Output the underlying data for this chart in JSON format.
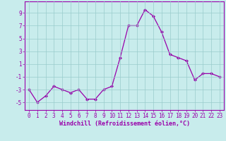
{
  "x": [
    0,
    1,
    2,
    3,
    4,
    5,
    6,
    7,
    8,
    9,
    10,
    11,
    12,
    13,
    14,
    15,
    16,
    17,
    18,
    19,
    20,
    21,
    22,
    23
  ],
  "y": [
    -3,
    -5,
    -4,
    -2.5,
    -3,
    -3.5,
    -3,
    -4.5,
    -4.5,
    -3,
    -2.5,
    2,
    7,
    7,
    9.5,
    8.5,
    6,
    2.5,
    2,
    1.5,
    -1.5,
    -0.5,
    -0.5,
    -1
  ],
  "line_color": "#9900aa",
  "marker_color": "#9900aa",
  "bg_color": "#c8ecec",
  "grid_color": "#99cccc",
  "xlabel": "Windchill (Refroidissement éolien,°C)",
  "ylabel_ticks": [
    -5,
    -3,
    -1,
    1,
    3,
    5,
    7,
    9
  ],
  "xlim": [
    -0.5,
    23.5
  ],
  "ylim": [
    -6.2,
    10.8
  ],
  "xticks": [
    0,
    1,
    2,
    3,
    4,
    5,
    6,
    7,
    8,
    9,
    10,
    11,
    12,
    13,
    14,
    15,
    16,
    17,
    18,
    19,
    20,
    21,
    22,
    23
  ],
  "tick_fontsize": 5.5,
  "label_fontsize": 6.0
}
